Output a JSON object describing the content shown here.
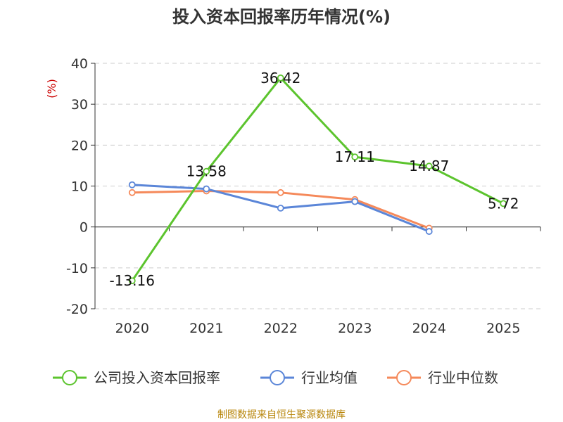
{
  "chart_data": {
    "type": "line",
    "title": "投入资本回报率历年情况(%)",
    "ylabel": "(%)",
    "xlabel": "",
    "categories": [
      "2020",
      "2021",
      "2022",
      "2023",
      "2024",
      "2025"
    ],
    "ylim": [
      -20,
      40
    ],
    "yticks": [
      40,
      30,
      20,
      10,
      0,
      -10,
      -20
    ],
    "grid": true,
    "legend_position": "bottom",
    "series": [
      {
        "name": "公司投入资本回报率",
        "color": "#5cc42e",
        "values": [
          -13.16,
          13.58,
          36.42,
          17.11,
          14.87,
          5.72
        ],
        "labels": [
          "-13.16",
          "13.58",
          "36.42",
          "17.11",
          "14.87",
          "5.72"
        ]
      },
      {
        "name": "行业均值",
        "color": "#5b86d8",
        "values": [
          10.3,
          9.3,
          4.6,
          6.2,
          -1.1,
          null
        ]
      },
      {
        "name": "行业中位数",
        "color": "#f5895a",
        "values": [
          8.4,
          8.8,
          8.4,
          6.7,
          -0.3,
          null
        ]
      }
    ],
    "source": "制图数据来自恒生聚源数据库"
  }
}
